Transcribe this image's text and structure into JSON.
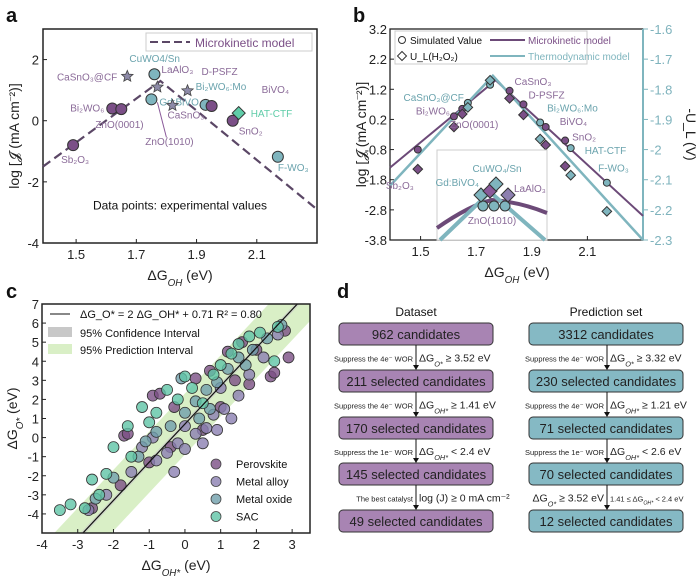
{
  "panel_labels": {
    "a": "a",
    "b": "b",
    "c": "c",
    "d": "d"
  },
  "colors": {
    "purple": "#7b4f87",
    "teal": "#7fb5be",
    "green": "#5fcca8",
    "star": "#8d8aa8",
    "box_purple": "#a884b3",
    "box_teal": "#85b9c4"
  },
  "chart_data": [
    {
      "panel": "a",
      "type": "scatter",
      "xlabel": {
        "main": "ΔG",
        "sub": "OH",
        "unit": " (eV)"
      },
      "ylabel": "log [𝓙 (mA cm⁻²)]",
      "xlim": [
        1.39,
        2.3
      ],
      "ylim": [
        -4,
        3
      ],
      "xticks": [
        1.5,
        1.7,
        1.9,
        2.1
      ],
      "yticks": [
        -4,
        -2,
        0,
        2
      ],
      "legend": "Microkinetic model",
      "legend_position": "top-right",
      "annotation": "Data points: experimental values",
      "model_curve": [
        [
          1.39,
          -1.5
        ],
        [
          1.78,
          1.3
        ],
        [
          2.3,
          -2.9
        ]
      ],
      "points": [
        {
          "label": "Sb₂O₃",
          "x": 1.49,
          "y": -0.8,
          "marker": "circle",
          "color": "purple"
        },
        {
          "label": "Bi₂WO₆",
          "x": 1.62,
          "y": 0.4,
          "marker": "circle",
          "color": "purple"
        },
        {
          "label": "ZnO(0001)",
          "x": 1.65,
          "y": 0.38,
          "marker": "circle",
          "color": "purple"
        },
        {
          "label": "CaSnO₃@CF",
          "x": 1.67,
          "y": 1.45,
          "marker": "star",
          "color": "star"
        },
        {
          "label": "Gd:BiVO₄",
          "x": 1.75,
          "y": 0.7,
          "marker": "circle",
          "color": "teal"
        },
        {
          "label": "CuWO4/Sn",
          "x": 1.76,
          "y": 1.52,
          "marker": "circle",
          "color": "teal"
        },
        {
          "label": "LaAlO₃",
          "x": 1.77,
          "y": 1.1,
          "marker": "star",
          "color": "star"
        },
        {
          "label": "CaSnO₃",
          "x": 1.82,
          "y": 0.5,
          "marker": "star",
          "color": "star"
        },
        {
          "label": "D-PSFZ",
          "x": 1.87,
          "y": 0.98,
          "marker": "star",
          "color": "star"
        },
        {
          "label": "Bi₂WO₆:Mo",
          "x": 1.93,
          "y": 0.52,
          "marker": "circle",
          "color": "teal"
        },
        {
          "label": "BiVO₄",
          "x": 1.95,
          "y": 0.48,
          "marker": "circle",
          "color": "purple"
        },
        {
          "label": "SnO₂",
          "x": 2.02,
          "y": 0.0,
          "marker": "circle",
          "color": "purple"
        },
        {
          "label": "HAT-CTF",
          "x": 2.04,
          "y": 0.25,
          "marker": "diamond",
          "color": "green"
        },
        {
          "label": "F-WO₃",
          "x": 2.17,
          "y": -1.18,
          "marker": "circle",
          "color": "teal"
        }
      ],
      "arrow_label": "ZnO(1010)"
    },
    {
      "panel": "b",
      "type": "line",
      "xlabel": {
        "main": "ΔG",
        "sub": "OH",
        "unit": " (eV)"
      },
      "ylabel": "log [𝓙 (mA cm⁻²)]",
      "ylabel_right": "-U_L (V)",
      "xlim": [
        1.39,
        2.3
      ],
      "ylim": [
        -3.8,
        3.2
      ],
      "ylim_right": [
        -2.3,
        -1.6
      ],
      "xticks": [
        1.5,
        1.7,
        1.9,
        2.1
      ],
      "yticks": [
        3.2,
        2.2,
        1.2,
        0.2,
        -0.8,
        -1.8,
        -2.8,
        -3.8
      ],
      "yticks_right": [
        -1.6,
        -1.7,
        -1.8,
        -1.9,
        -2.0,
        -2.1,
        -2.2,
        -2.3
      ],
      "legend": {
        "circle": "Simulated Value",
        "diamond": "U_L(H₂O₂)",
        "micro": "Microkinetic model",
        "thermo": "Thermodynamic model"
      },
      "microkinetic_curve": [
        [
          1.39,
          -1.4
        ],
        [
          1.77,
          1.5
        ],
        [
          2.3,
          -3.0
        ]
      ],
      "thermodynamic_curve": [
        [
          1.39,
          -2.0
        ],
        [
          1.76,
          1.65
        ],
        [
          2.3,
          -3.8
        ]
      ],
      "points": [
        {
          "label": "Sb₂O₃",
          "x": 1.49,
          "sim": -0.8,
          "ul": -1.45,
          "color": "purple"
        },
        {
          "label": "Bi₂WO₆",
          "x": 1.62,
          "sim": 0.3,
          "ul": -0.05,
          "color": "purple"
        },
        {
          "label": "ZnO(0001)",
          "x": 1.65,
          "sim": 0.55,
          "ul": 0.38,
          "color": "purple"
        },
        {
          "label": "CaSnO₃@CF",
          "x": 1.67,
          "sim": 0.75,
          "ul": 0.6,
          "color": "teal"
        },
        {
          "label": "",
          "x": 1.75,
          "sim": 1.35,
          "ul": 1.5,
          "color": "teal"
        },
        {
          "label": "CaSnO₃",
          "x": 1.82,
          "sim": 1.15,
          "ul": 0.9,
          "color": "purple"
        },
        {
          "label": "D-PSFZ",
          "x": 1.87,
          "sim": 0.7,
          "ul": 0.35,
          "color": "purple"
        },
        {
          "label": "Bi₂WO₆:Mo",
          "x": 1.93,
          "sim": 0.1,
          "ul": -0.45,
          "color": "teal"
        },
        {
          "label": "BiVO₄",
          "x": 1.95,
          "sim": -0.05,
          "ul": -0.65,
          "color": "purple"
        },
        {
          "label": "SnO₂",
          "x": 2.02,
          "sim": -0.5,
          "ul": -1.35,
          "color": "purple"
        },
        {
          "label": "HAT-CTF",
          "x": 2.04,
          "sim": -0.75,
          "ul": -1.65,
          "color": "teal"
        },
        {
          "label": "F-WO₃",
          "x": 2.17,
          "sim": -1.9,
          "ul": -2.85,
          "color": "teal"
        }
      ],
      "inset_labels": [
        "CuWO₄/Sn",
        "Gd:BiVO₄",
        "LaAlO₃",
        "ZnO(1010)"
      ]
    },
    {
      "panel": "c",
      "type": "scatter",
      "xlabel": {
        "main": "ΔG",
        "sub": "OH*",
        "unit": " (eV)"
      },
      "ylabel": {
        "main": "ΔG",
        "sub": "O*",
        "unit": " (eV)"
      },
      "xlim": [
        -4,
        3.5
      ],
      "ylim": [
        -5,
        7
      ],
      "xticks": [
        -4,
        -3,
        -2,
        -1,
        0,
        1,
        2,
        3
      ],
      "yticks": [
        -4,
        -3,
        -2,
        -1,
        0,
        1,
        2,
        3,
        4,
        5,
        6,
        7
      ],
      "fit": {
        "slope": 2,
        "intercept": 0.71,
        "label": "ΔG_O* = 2 ΔG_OH* + 0.71  R² = 0.80",
        "ci_label": "95% Confidence Interval",
        "pi_label": "95% Prediction Interval",
        "pi_halfwidth": 1.6
      },
      "series": [
        {
          "name": "Perovskite",
          "color": "#7a4f85",
          "points": [
            [
              -1.7,
              0.1
            ],
            [
              -1.6,
              0.2
            ],
            [
              -0.9,
              2.2
            ],
            [
              -0.7,
              2.3
            ],
            [
              -0.3,
              1.6
            ],
            [
              0.3,
              3.1
            ],
            [
              0.7,
              3.5
            ],
            [
              1.2,
              4.5
            ],
            [
              1.6,
              5.0
            ],
            [
              2.0,
              4.6
            ],
            [
              2.4,
              3.2
            ],
            [
              2.9,
              4.2
            ],
            [
              2.8,
              5.6
            ],
            [
              1.8,
              2.8
            ],
            [
              1.0,
              1.6
            ],
            [
              -1.0,
              -1.3
            ],
            [
              -1.8,
              -2.5
            ],
            [
              -2.6,
              -3.7
            ],
            [
              0.5,
              0.4
            ],
            [
              2.5,
              3.4
            ],
            [
              -0.4,
              -0.5
            ],
            [
              1.4,
              3.0
            ]
          ]
        },
        {
          "name": "Metal alloy",
          "color": "#8b80b2",
          "points": [
            [
              -2.7,
              -3.8
            ],
            [
              -2.2,
              -3.0
            ],
            [
              -1.5,
              -1.8
            ],
            [
              -1.2,
              -0.5
            ],
            [
              -0.8,
              -1.2
            ],
            [
              -0.5,
              -0.8
            ],
            [
              -0.2,
              -0.3
            ],
            [
              0.0,
              -0.6
            ],
            [
              0.3,
              0.2
            ],
            [
              0.6,
              0.5
            ],
            [
              0.9,
              0.4
            ],
            [
              1.1,
              1.5
            ],
            [
              1.3,
              1.0
            ],
            [
              1.5,
              2.2
            ],
            [
              1.8,
              3.3
            ],
            [
              2.2,
              4.2
            ],
            [
              0.5,
              -0.3
            ],
            [
              0.0,
              0.6
            ],
            [
              -0.9,
              0.0
            ],
            [
              1.0,
              2.6
            ],
            [
              -0.3,
              -1.8
            ],
            [
              0.8,
              1.2
            ],
            [
              2.6,
              5.4
            ]
          ]
        },
        {
          "name": "Metal oxide",
          "color": "#6f9fab",
          "points": [
            [
              -2.5,
              -3.2
            ],
            [
              -2.0,
              -2.1
            ],
            [
              -1.3,
              -1.0
            ],
            [
              -0.8,
              0.3
            ],
            [
              -0.4,
              0.6
            ],
            [
              0.0,
              1.3
            ],
            [
              0.3,
              1.9
            ],
            [
              0.6,
              2.5
            ],
            [
              0.9,
              2.9
            ],
            [
              1.2,
              3.6
            ],
            [
              1.5,
              4.2
            ],
            [
              1.9,
              4.6
            ],
            [
              2.3,
              5.2
            ],
            [
              2.7,
              5.9
            ],
            [
              -0.1,
              3.1
            ],
            [
              0.4,
              1.0
            ],
            [
              1.7,
              3.8
            ],
            [
              -1.1,
              -0.2
            ],
            [
              0.7,
              1.5
            ]
          ]
        },
        {
          "name": "SAC",
          "color": "#5fc4a6",
          "points": [
            [
              -3.5,
              -3.8
            ],
            [
              -3.2,
              -3.5
            ],
            [
              -2.8,
              -3.7
            ],
            [
              -2.6,
              -2.2
            ],
            [
              -2.2,
              -1.9
            ],
            [
              -2.0,
              -0.5
            ],
            [
              -1.6,
              0.6
            ],
            [
              -1.2,
              1.6
            ],
            [
              -0.8,
              1.3
            ],
            [
              -0.5,
              2.5
            ],
            [
              -0.2,
              2.0
            ],
            [
              0.0,
              3.2
            ],
            [
              0.2,
              2.6
            ],
            [
              0.5,
              1.8
            ],
            [
              1.0,
              3.8
            ],
            [
              1.3,
              4.4
            ],
            [
              1.8,
              5.3
            ],
            [
              2.1,
              5.5
            ],
            [
              2.5,
              4.0
            ],
            [
              2.6,
              5.8
            ],
            [
              -1.5,
              -1.0
            ],
            [
              -1.0,
              0.8
            ],
            [
              0.8,
              3.3
            ],
            [
              -2.4,
              -3.0
            ],
            [
              1.5,
              4.9
            ]
          ]
        }
      ]
    },
    {
      "panel": "d",
      "type": "table",
      "columns": [
        {
          "title": "Dataset",
          "color": "box_purple",
          "boxes": [
            "962 candidates",
            "211 selected candidates",
            "170 selected candidates",
            "145 selected candidates",
            "49 selected candidates"
          ],
          "steps": [
            {
              "left": {
                "main": "Suppress the 4e⁻ WOR"
              },
              "right": {
                "main": "ΔG",
                "sub": "O*",
                "rest": " ≥ 3.52 eV"
              }
            },
            {
              "left": {
                "main": "Suppress the 4e⁻ WOR"
              },
              "right": {
                "main": "ΔG",
                "sub": "OH*",
                "rest": " ≥ 1.41 eV"
              }
            },
            {
              "left": {
                "main": "Suppress the 1e⁻ WOR"
              },
              "right": {
                "main": "ΔG",
                "sub": "OH*",
                "rest": " < 2.4 eV"
              }
            },
            {
              "left": {
                "main": "The best catalyst"
              },
              "right": {
                "main": "log (J) ≥ 0 mA cm⁻²"
              }
            }
          ]
        },
        {
          "title": "Prediction set",
          "color": "box_teal",
          "boxes": [
            "3312 candidates",
            "230 selected candidates",
            "71 selected candidates",
            "70 selected candidates",
            "12 selected candidates"
          ],
          "steps": [
            {
              "left": {
                "main": "Suppress the 4e⁻ WOR"
              },
              "right": {
                "main": "ΔG",
                "sub": "O*",
                "rest": " ≥ 3.32 eV"
              }
            },
            {
              "left": {
                "main": "Suppress the 4e⁻ WOR"
              },
              "right": {
                "main": "ΔG",
                "sub": "OH*",
                "rest": " ≥ 1.21 eV"
              }
            },
            {
              "left": {
                "main": "Suppress the 1e⁻ WOR"
              },
              "right": {
                "main": "ΔG",
                "sub": "OH*",
                "rest": " < 2.6 eV"
              }
            },
            {
              "left": {
                "main": "ΔG",
                "sub": "O*",
                "rest": " ≥ 3.52 eV"
              },
              "right": {
                "main": "1.41 ≤ ΔG",
                "sub": "OH*",
                "rest": " < 2.4 eV"
              }
            }
          ]
        }
      ]
    }
  ]
}
